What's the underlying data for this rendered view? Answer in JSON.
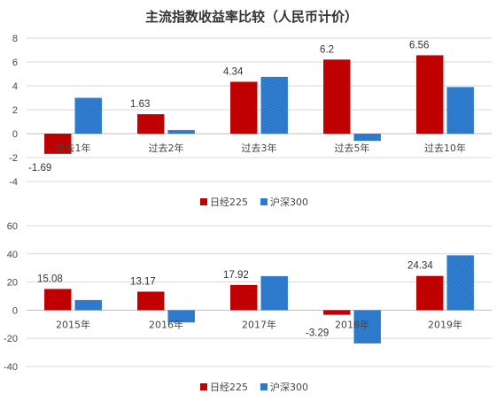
{
  "title": "主流指数收益率比较（人民币计价）",
  "colors": {
    "nikkei": "#C00000",
    "hs300": "#1F6FC5",
    "grid": "#D9D9D9",
    "axis": "#BFBFBF"
  },
  "chart_data": [
    {
      "type": "bar",
      "categories": [
        "过去1年",
        "过去2年",
        "过去3年",
        "过去5年",
        "过去10年"
      ],
      "series": [
        {
          "name": "日经225",
          "values": [
            -1.69,
            1.63,
            4.34,
            6.2,
            6.56
          ]
        },
        {
          "name": "沪深300",
          "values": [
            3.0,
            0.3,
            4.75,
            -0.6,
            3.9
          ]
        }
      ],
      "data_labels": [
        "-1.69",
        "1.63",
        "4.34",
        "6.2",
        "6.56"
      ],
      "ylim": [
        -4,
        8
      ],
      "yticks": [
        -4,
        -2,
        0,
        2,
        4,
        6,
        8
      ],
      "grid": true,
      "legend": "bottom-center"
    },
    {
      "type": "bar",
      "categories": [
        "2015年",
        "2016年",
        "2017年",
        "2018年",
        "2019年"
      ],
      "series": [
        {
          "name": "日经225",
          "values": [
            15.08,
            13.17,
            17.92,
            -3.29,
            24.34
          ]
        },
        {
          "name": "沪深300",
          "values": [
            7.2,
            -8.7,
            24.2,
            -23.6,
            39.0
          ]
        }
      ],
      "data_labels": [
        "15.08",
        "13.17",
        "17.92",
        "-3.29",
        "24.34"
      ],
      "ylim": [
        -40,
        60
      ],
      "yticks": [
        -40,
        -20,
        0,
        20,
        40,
        60
      ],
      "grid": true,
      "legend": "bottom-center"
    }
  ]
}
